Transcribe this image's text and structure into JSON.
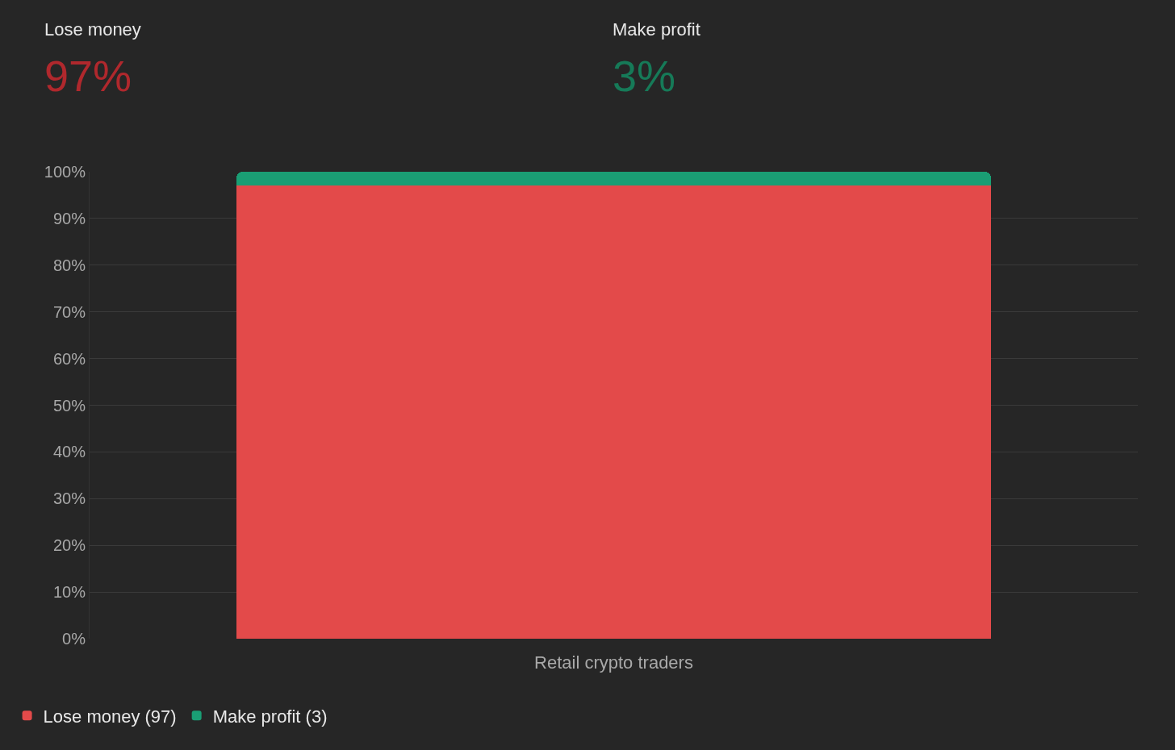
{
  "chart_data": {
    "type": "bar",
    "stacked": true,
    "categories": [
      "Retail crypto traders"
    ],
    "series": [
      {
        "name": "Lose money (97)",
        "color": "#e34a4a",
        "values": [
          97
        ]
      },
      {
        "name": "Make profit (3)",
        "color": "#1a9e74",
        "values": [
          3
        ]
      }
    ],
    "ylim": [
      0,
      100
    ],
    "yticks": [
      {
        "value": 0,
        "label": "0%"
      },
      {
        "value": 10,
        "label": "10%"
      },
      {
        "value": 20,
        "label": "20%"
      },
      {
        "value": 30,
        "label": "30%"
      },
      {
        "value": 40,
        "label": "40%"
      },
      {
        "value": 50,
        "label": "50%"
      },
      {
        "value": 60,
        "label": "60%"
      },
      {
        "value": 70,
        "label": "70%"
      },
      {
        "value": 80,
        "label": "80%"
      },
      {
        "value": 90,
        "label": "90%"
      },
      {
        "value": 100,
        "label": "100%"
      }
    ],
    "grid": "y",
    "legend": "bottom left",
    "annotations": [
      "Lose money",
      "97%",
      "Make profit",
      "3%"
    ]
  }
}
